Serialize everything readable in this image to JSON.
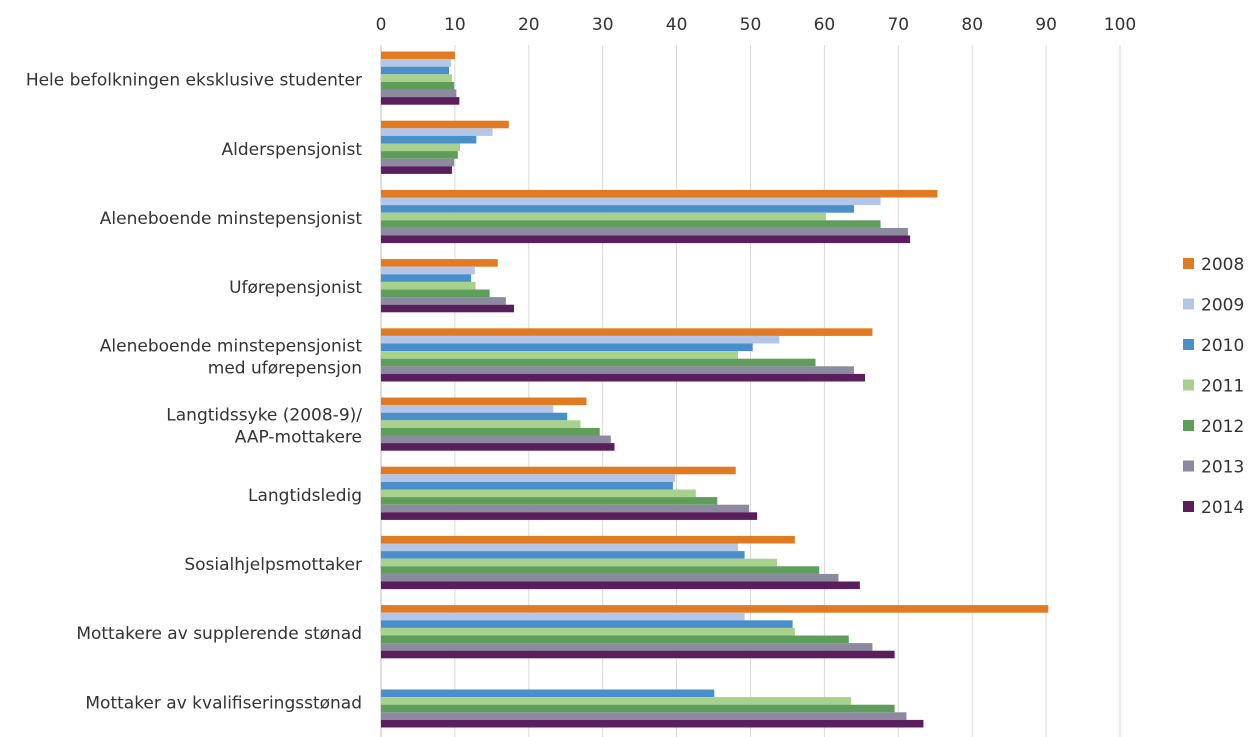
{
  "chart_data": {
    "type": "bar",
    "orientation": "horizontal",
    "title": "",
    "xlabel": "",
    "ylabel": "",
    "xlim": [
      0,
      100
    ],
    "ticks": [
      0,
      10,
      20,
      30,
      40,
      50,
      60,
      70,
      80,
      90,
      100
    ],
    "grid": true,
    "legend_position": "right",
    "categories": [
      [
        "Hele befolkningen eksklusive studenter"
      ],
      [
        "Alderspensjonist"
      ],
      [
        "Aleneboende minstepensjonist"
      ],
      [
        "Uførepensjonist"
      ],
      [
        "Aleneboende minstepensjonist",
        "med uførepensjon"
      ],
      [
        "Langtidssyke (2008-9)/",
        "AAP-mottakere"
      ],
      [
        "Langtidsledig"
      ],
      [
        "Sosialhjelpsmottaker"
      ],
      [
        "Mottakere av supplerende stønad"
      ],
      [
        "Mottaker av kvalifiseringsstønad"
      ]
    ],
    "series": [
      {
        "name": "2008",
        "color": "#e07b24",
        "values": [
          10,
          17.3,
          75.3,
          15.8,
          66.5,
          27.8,
          48,
          56,
          90.3,
          null
        ]
      },
      {
        "name": "2009",
        "color": "#b4c6e7",
        "values": [
          9.5,
          15.1,
          67.6,
          12.7,
          53.9,
          23.3,
          39.8,
          48.3,
          49.2,
          null
        ]
      },
      {
        "name": "2010",
        "color": "#4a8fc9",
        "values": [
          9.2,
          12.9,
          64,
          12.2,
          50.3,
          25.2,
          39.5,
          49.2,
          55.7,
          45.1
        ]
      },
      {
        "name": "2011",
        "color": "#a9d18e",
        "values": [
          9.6,
          10.7,
          60.2,
          12.8,
          48.3,
          27,
          42.6,
          53.6,
          56,
          63.6
        ]
      },
      {
        "name": "2012",
        "color": "#5f9e5a",
        "values": [
          9.9,
          10.4,
          67.6,
          14.7,
          58.8,
          29.6,
          45.5,
          59.3,
          63.3,
          69.5
        ]
      },
      {
        "name": "2013",
        "color": "#8b8a9e",
        "values": [
          10.2,
          9.9,
          71.3,
          16.9,
          64,
          31.1,
          49.8,
          61.9,
          66.5,
          71.1
        ]
      },
      {
        "name": "2014",
        "color": "#5a1e5c",
        "values": [
          10.6,
          9.6,
          71.6,
          18,
          65.5,
          31.6,
          50.9,
          64.8,
          69.5,
          73.4
        ]
      }
    ]
  }
}
